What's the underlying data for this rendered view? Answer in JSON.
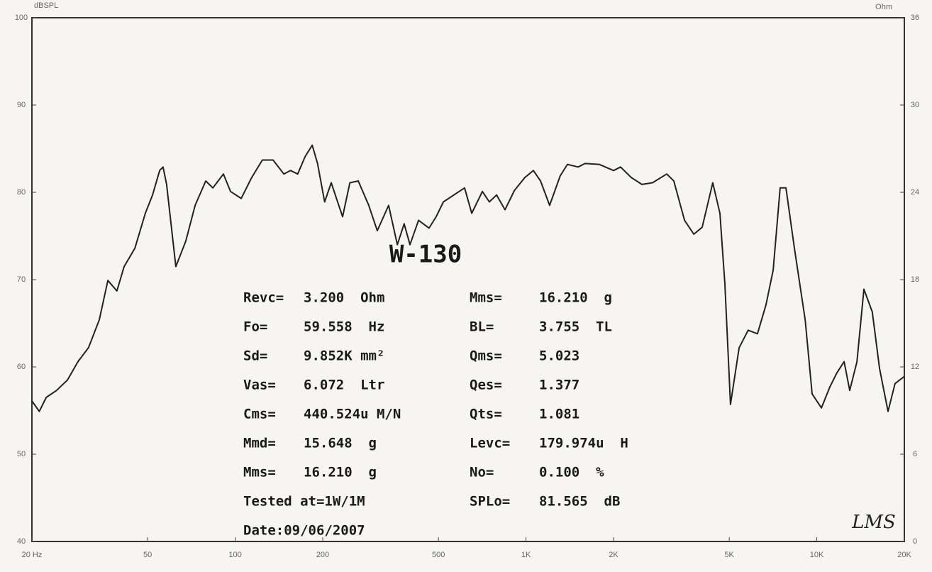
{
  "chart_data": {
    "type": "line",
    "y_label": "dBSPL",
    "y2_label": "Ohm",
    "title": "W-130",
    "signature": "LMS",
    "log_x": true,
    "xlim": [
      20,
      20000
    ],
    "xticks": [
      {
        "value": 20,
        "label": "20 Hz"
      },
      50,
      100,
      200,
      500,
      {
        "value": 1000,
        "label": "1K"
      },
      {
        "value": 2000,
        "label": "2K"
      },
      {
        "value": 5000,
        "label": "5K"
      },
      {
        "value": 10000,
        "label": "10K"
      },
      {
        "value": 20000,
        "label": "20K"
      }
    ],
    "ylim": [
      40,
      100
    ],
    "yticks": [
      40,
      50,
      60,
      70,
      80,
      90,
      100
    ],
    "y2lim": [
      0,
      36
    ],
    "y2ticks": [
      0,
      6,
      12,
      18,
      24,
      30,
      36
    ],
    "x": [
      20,
      21.2,
      22.4,
      24.3,
      26.5,
      28.8,
      31.3,
      34.1,
      36.5,
      39.2,
      41.5,
      45.2,
      49.1,
      52.0,
      55.0,
      56.5,
      58.1,
      62.5,
      67.6,
      72.8,
      79.2,
      83.8,
      91.1,
      96.4,
      104.9,
      114,
      124,
      135,
      147,
      155,
      164,
      174,
      184,
      192,
      203,
      214,
      224,
      234,
      248,
      265,
      288,
      308,
      337,
      361,
      381,
      399,
      427,
      464,
      491,
      520,
      565,
      615,
      651,
      708,
      748,
      792,
      847,
      912,
      991,
      1060,
      1122,
      1206,
      1312,
      1388,
      1510,
      1597,
      1786,
      2000,
      2114,
      2302,
      2505,
      2724,
      3048,
      3223,
      3508,
      3776,
      4036,
      4389,
      4645,
      4831,
      5050,
      5408,
      5808,
      6252,
      6685,
      7080,
      7480,
      7834,
      8376,
      9120,
      9640,
      10376,
      11092,
      11720,
      12416,
      12980,
      13740,
      14520,
      15520,
      16440,
      17580,
      18580,
      20000
    ],
    "series": [
      {
        "name": "SPL",
        "color": "#222222",
        "values": [
          56.1,
          54.9,
          56.5,
          57.3,
          58.5,
          60.6,
          62.2,
          65.4,
          69.9,
          68.7,
          71.5,
          73.6,
          77.6,
          79.7,
          82.5,
          82.9,
          80.9,
          71.5,
          74.4,
          78.5,
          81.3,
          80.5,
          82.1,
          80.1,
          79.3,
          81.7,
          83.7,
          83.7,
          82.1,
          82.5,
          82.1,
          84.1,
          85.4,
          83.3,
          78.9,
          81.1,
          79.1,
          77.2,
          81.1,
          81.3,
          78.5,
          75.6,
          78.5,
          74.0,
          76.4,
          74.0,
          76.8,
          75.9,
          77.2,
          78.9,
          79.7,
          80.5,
          77.6,
          80.1,
          78.9,
          79.7,
          78.0,
          80.2,
          81.7,
          82.5,
          81.3,
          78.5,
          81.9,
          83.2,
          82.9,
          83.3,
          83.2,
          82.5,
          82.9,
          81.7,
          80.9,
          81.1,
          82.1,
          81.3,
          76.8,
          75.2,
          76.0,
          81.1,
          77.6,
          69.5,
          55.7,
          62.2,
          64.2,
          63.8,
          67.1,
          71.1,
          80.5,
          80.5,
          73.6,
          65.4,
          56.9,
          55.3,
          57.7,
          59.3,
          60.6,
          57.3,
          60.6,
          68.9,
          66.3,
          59.8,
          54.9,
          58.1,
          58.9
        ]
      }
    ],
    "params_left": [
      {
        "label": "Revc=",
        "value": "3.200  Ohm"
      },
      {
        "label": "Fo=",
        "value": "59.558  Hz"
      },
      {
        "label": "Sd=",
        "value": "9.852K mm²"
      },
      {
        "label": "Vas=",
        "value": "6.072  Ltr"
      },
      {
        "label": "Cms=",
        "value": "440.524u M/N"
      },
      {
        "label": "Mmd=",
        "value": "15.648  g"
      },
      {
        "label": "Mms=",
        "value": "16.210  g"
      }
    ],
    "notes": [
      "Tested at=1W/1M",
      "Date:09/06/2007"
    ],
    "params_right": [
      {
        "label": "Mms=",
        "value": "16.210  g"
      },
      {
        "label": "BL=",
        "value": "3.755  TL"
      },
      {
        "label": "Qms=",
        "value": "5.023"
      },
      {
        "label": "Qes=",
        "value": "1.377"
      },
      {
        "label": "Qts=",
        "value": "1.081"
      },
      {
        "label": "Levc=",
        "value": "179.974u  H"
      },
      {
        "label": "No=",
        "value": "0.100  %"
      },
      {
        "label": "SPLo=",
        "value": "81.565  dB"
      }
    ]
  }
}
